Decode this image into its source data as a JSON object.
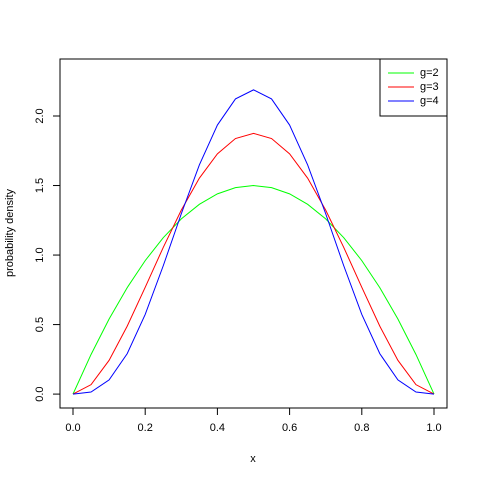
{
  "chart_data": {
    "type": "line",
    "x_label": "x",
    "y_label": "probability density",
    "x": [
      0,
      0.05,
      0.1,
      0.15,
      0.2,
      0.25,
      0.3,
      0.35,
      0.4,
      0.45,
      0.5,
      0.55,
      0.6,
      0.65,
      0.7,
      0.75,
      0.8,
      0.85,
      0.9,
      0.95,
      1
    ],
    "series": [
      {
        "name": "g=2",
        "color": "#00ff00",
        "values": [
          0,
          0.285,
          0.54,
          0.765,
          0.96,
          1.125,
          1.26,
          1.365,
          1.44,
          1.485,
          1.5,
          1.485,
          1.44,
          1.365,
          1.26,
          1.125,
          0.96,
          0.765,
          0.54,
          0.285,
          0
        ]
      },
      {
        "name": "g=3",
        "color": "#ff0000",
        "values": [
          0,
          0.068,
          0.243,
          0.488,
          0.768,
          1.055,
          1.323,
          1.553,
          1.728,
          1.838,
          1.875,
          1.838,
          1.728,
          1.553,
          1.323,
          1.055,
          0.768,
          0.488,
          0.243,
          0.068,
          0
        ]
      },
      {
        "name": "g=4",
        "color": "#0000ff",
        "values": [
          0,
          0.015,
          0.102,
          0.29,
          0.573,
          0.923,
          1.297,
          1.648,
          1.935,
          2.123,
          2.188,
          2.123,
          1.935,
          1.648,
          1.297,
          0.923,
          0.573,
          0.29,
          0.102,
          0.015,
          0
        ]
      }
    ],
    "xlim": [
      -0.036,
      1.036
    ],
    "ylim": [
      -0.1,
      2.41
    ],
    "xticks": [
      {
        "value": 0,
        "label": "0.0"
      },
      0.2,
      0.4,
      0.6,
      0.8,
      {
        "value": 1,
        "label": "1.0"
      }
    ],
    "yticks": [
      {
        "value": 0,
        "label": "0.0"
      },
      0.5,
      {
        "value": 1,
        "label": "1.0"
      },
      1.5,
      {
        "value": 2,
        "label": "2.0"
      }
    ],
    "legend": "topright"
  }
}
